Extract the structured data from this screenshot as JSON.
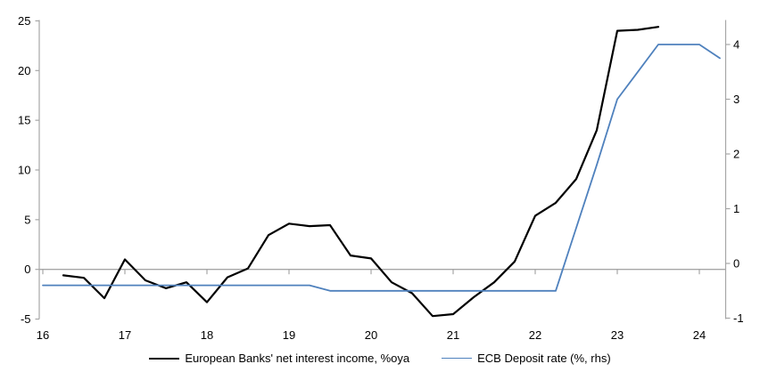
{
  "chart_data": {
    "type": "line",
    "title": "",
    "x_axis": {
      "ticks": [
        16,
        17,
        18,
        19,
        20,
        21,
        22,
        23,
        24
      ],
      "range": [
        16,
        24.35
      ]
    },
    "left_axis": {
      "ticks": [
        -5,
        0,
        5,
        10,
        15,
        20,
        25
      ],
      "range": [
        -5,
        25
      ]
    },
    "right_axis": {
      "ticks": [
        -1,
        0,
        1,
        2,
        3,
        4
      ],
      "range": [
        -1,
        4.5
      ]
    },
    "grid": "zero-line-only",
    "legend_position": "bottom-center",
    "series": [
      {
        "id": "european-banks-nii",
        "name": "European Banks' net interest income, %oya",
        "axis": "left",
        "color": "#000000",
        "width": 2.2,
        "x": [
          16.25,
          16.5,
          16.75,
          17.0,
          17.25,
          17.5,
          17.75,
          18.0,
          18.25,
          18.5,
          18.75,
          19.0,
          19.25,
          19.5,
          19.75,
          20.0,
          20.25,
          20.5,
          20.75,
          21.0,
          21.25,
          21.5,
          21.75,
          22.0,
          22.25,
          22.5,
          22.75,
          23.0,
          23.25,
          23.5
        ],
        "values": [
          -0.6,
          -0.85,
          -2.9,
          1.0,
          -1.1,
          -1.9,
          -1.3,
          -3.3,
          -0.8,
          0.1,
          3.45,
          4.6,
          4.35,
          4.45,
          1.4,
          1.1,
          -1.3,
          -2.4,
          -4.7,
          -4.5,
          -2.8,
          -1.3,
          0.8,
          5.4,
          6.7,
          9.1,
          14.0,
          24.0,
          24.1,
          24.4
        ]
      },
      {
        "id": "ecb-deposit-rate",
        "name": "ECB Deposit rate (%, rhs)",
        "axis": "right",
        "color": "#4F81BD",
        "width": 1.8,
        "x": [
          16.0,
          16.25,
          16.5,
          16.75,
          17.0,
          17.25,
          17.5,
          17.75,
          18.0,
          18.25,
          18.5,
          18.75,
          19.0,
          19.25,
          19.5,
          19.75,
          20.0,
          20.25,
          20.5,
          20.75,
          21.0,
          21.25,
          21.5,
          21.75,
          22.0,
          22.25,
          22.5,
          22.75,
          23.0,
          23.25,
          23.5,
          23.75,
          24.0,
          24.25
        ],
        "values": [
          -0.4,
          -0.4,
          -0.4,
          -0.4,
          -0.4,
          -0.4,
          -0.4,
          -0.4,
          -0.4,
          -0.4,
          -0.4,
          -0.4,
          -0.4,
          -0.4,
          -0.5,
          -0.5,
          -0.5,
          -0.5,
          -0.5,
          -0.5,
          -0.5,
          -0.5,
          -0.5,
          -0.5,
          -0.5,
          -0.5,
          0.65,
          1.8,
          3.0,
          3.5,
          4.0,
          4.0,
          4.0,
          3.75
        ]
      }
    ]
  },
  "colors": {
    "background": "#FFFFFF",
    "axis": "#A6A6A6",
    "zero_line": "#A6A6A6",
    "text": "#000000"
  }
}
